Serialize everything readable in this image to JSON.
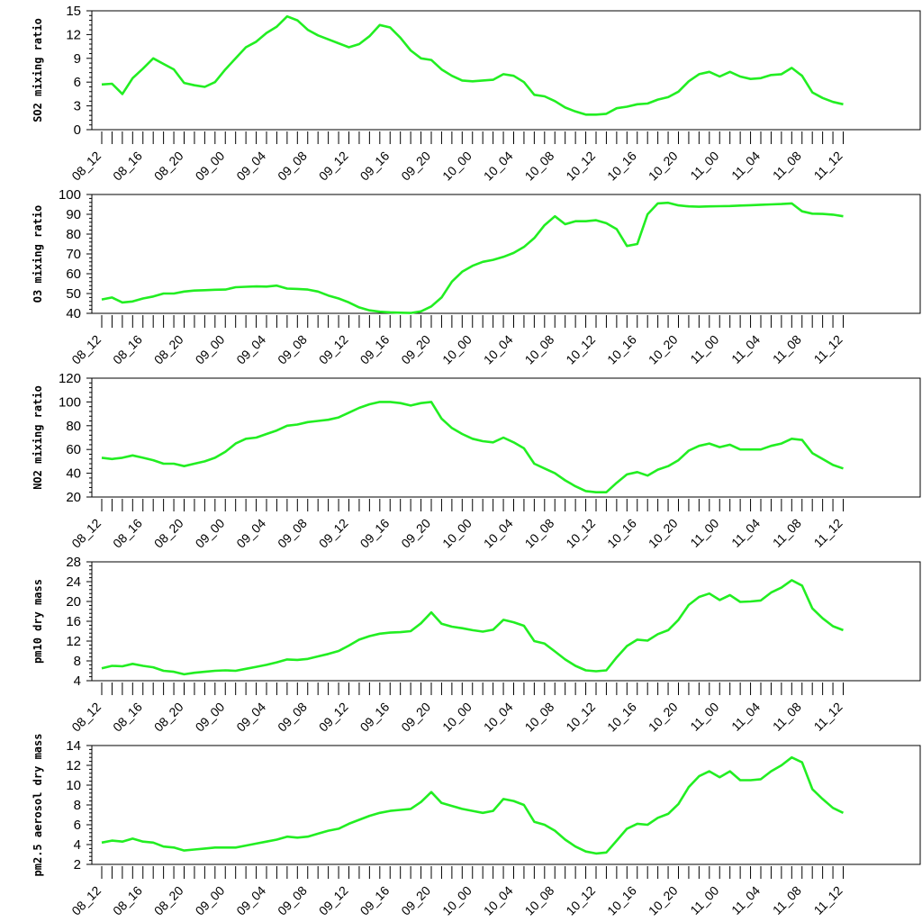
{
  "chart_data": [
    {
      "type": "line",
      "ylabel": "SO2 mixing ratio",
      "ylim": [
        0,
        15
      ],
      "yticks": [
        0,
        3,
        6,
        9,
        12,
        15
      ],
      "x_tick_labels": [
        "08_12",
        "08_16",
        "08_20",
        "09_00",
        "09_04",
        "09_08",
        "09_12",
        "09_16",
        "09_20",
        "10_00",
        "10_04",
        "10_08",
        "10_12",
        "10_16",
        "10_20",
        "11_00",
        "11_04",
        "11_08",
        "11_12"
      ],
      "line_color": "#22ee22",
      "values": [
        5.7,
        5.8,
        4.5,
        6.5,
        7.7,
        9.0,
        8.3,
        7.6,
        5.9,
        5.6,
        5.4,
        6.0,
        7.6,
        9.0,
        10.4,
        11.1,
        12.2,
        13.0,
        14.3,
        13.8,
        12.6,
        11.9,
        11.4,
        10.9,
        10.4,
        10.8,
        11.8,
        13.2,
        12.9,
        11.6,
        10.0,
        9.0,
        8.8,
        7.6,
        6.8,
        6.2,
        6.1,
        6.2,
        6.3,
        7.0,
        6.8,
        6.0,
        4.4,
        4.2,
        3.6,
        2.8,
        2.3,
        1.9,
        1.9,
        2.0,
        2.7,
        2.9,
        3.2,
        3.3,
        3.8,
        4.1,
        4.8,
        6.1,
        7.0,
        7.3,
        6.7,
        7.3,
        6.7,
        6.4,
        6.5,
        6.9,
        7.0,
        7.8,
        6.8,
        4.7,
        4.0,
        3.5,
        3.2
      ]
    },
    {
      "type": "line",
      "ylabel": "O3 mixing ratio",
      "ylim": [
        40,
        100
      ],
      "yticks": [
        40,
        50,
        60,
        70,
        80,
        90,
        100
      ],
      "x_tick_labels": [
        "08_12",
        "08_16",
        "08_20",
        "09_00",
        "09_04",
        "09_08",
        "09_12",
        "09_16",
        "09_20",
        "10_00",
        "10_04",
        "10_08",
        "10_12",
        "10_16",
        "10_20",
        "11_00",
        "11_04",
        "11_08",
        "11_12"
      ],
      "line_color": "#22ee22",
      "values": [
        47,
        48,
        45.5,
        46,
        47.5,
        48.5,
        50,
        50,
        51,
        51.5,
        51.7,
        51.9,
        52,
        53.2,
        53.4,
        53.6,
        53.5,
        54,
        52.5,
        52.3,
        52,
        51,
        49,
        47.5,
        45.5,
        43,
        41.5,
        40.8,
        40.5,
        40.3,
        40.2,
        41,
        43.5,
        48,
        56,
        61,
        64,
        66,
        67,
        68.5,
        70.5,
        73.5,
        78,
        84.5,
        89,
        85,
        86.5,
        86.5,
        87,
        85.5,
        82.5,
        74,
        75,
        90,
        95.5,
        95.8,
        94.5,
        94,
        93.8,
        94,
        94.1,
        94.2,
        94.4,
        94.6,
        94.8,
        95,
        95.2,
        95.5,
        91.5,
        90.3,
        90.2,
        89.8,
        89
      ]
    },
    {
      "type": "line",
      "ylabel": "NO2 mixing ratio",
      "ylim": [
        20,
        120
      ],
      "yticks": [
        20,
        40,
        60,
        80,
        100,
        120
      ],
      "x_tick_labels": [
        "08_12",
        "08_16",
        "08_20",
        "09_00",
        "09_04",
        "09_08",
        "09_12",
        "09_16",
        "09_20",
        "10_00",
        "10_04",
        "10_08",
        "10_12",
        "10_16",
        "10_20",
        "11_00",
        "11_04",
        "11_08",
        "11_12"
      ],
      "line_color": "#22ee22",
      "values": [
        53,
        52,
        53,
        55,
        53,
        51,
        48,
        48,
        46,
        48,
        50,
        53,
        58,
        65,
        69,
        70,
        73,
        76,
        80,
        81,
        83,
        84,
        85,
        87,
        91,
        95,
        98,
        100,
        100,
        99,
        97,
        99,
        100,
        86,
        78,
        73,
        69,
        67,
        66,
        70,
        66,
        61,
        48,
        44,
        40,
        34,
        29,
        25,
        24,
        24,
        32,
        39,
        41,
        38,
        43,
        46,
        51,
        59,
        63,
        65,
        62,
        64,
        60,
        60,
        60,
        63,
        65,
        69,
        68,
        57,
        52,
        47,
        44
      ]
    },
    {
      "type": "line",
      "ylabel": "pm10 dry mass",
      "ylim": [
        4,
        28
      ],
      "yticks": [
        4,
        8,
        12,
        16,
        20,
        24,
        28
      ],
      "x_tick_labels": [
        "08_12",
        "08_16",
        "08_20",
        "09_00",
        "09_04",
        "09_08",
        "09_12",
        "09_16",
        "09_20",
        "10_00",
        "10_04",
        "10_08",
        "10_12",
        "10_16",
        "10_20",
        "11_00",
        "11_04",
        "11_08",
        "11_12"
      ],
      "line_color": "#22ee22",
      "values": [
        6.5,
        7.0,
        6.9,
        7.4,
        7.0,
        6.7,
        6.0,
        5.8,
        5.3,
        5.6,
        5.8,
        6.0,
        6.1,
        6.0,
        6.4,
        6.8,
        7.2,
        7.7,
        8.3,
        8.2,
        8.4,
        8.9,
        9.4,
        10.0,
        11.1,
        12.3,
        13.0,
        13.5,
        13.7,
        13.8,
        14.0,
        15.6,
        17.8,
        15.5,
        14.9,
        14.6,
        14.2,
        13.9,
        14.3,
        16.3,
        15.8,
        15.1,
        12.0,
        11.5,
        9.9,
        8.3,
        7.0,
        6.1,
        5.9,
        6.1,
        8.7,
        11.0,
        12.3,
        12.1,
        13.4,
        14.2,
        16.3,
        19.3,
        20.9,
        21.6,
        20.3,
        21.3,
        19.9,
        20.0,
        20.2,
        21.8,
        22.8,
        24.3,
        23.2,
        18.6,
        16.6,
        15.0,
        14.2
      ]
    },
    {
      "type": "line",
      "ylabel": "pm2.5 aerosol dry mass",
      "ylim": [
        2,
        14
      ],
      "yticks": [
        2,
        4,
        6,
        8,
        10,
        12,
        14
      ],
      "x_tick_labels": [
        "08_12",
        "08_16",
        "08_20",
        "09_00",
        "09_04",
        "09_08",
        "09_12",
        "09_16",
        "09_20",
        "10_00",
        "10_04",
        "10_08",
        "10_12",
        "10_16",
        "10_20",
        "11_00",
        "11_04",
        "11_08",
        "11_12"
      ],
      "line_color": "#22ee22",
      "values": [
        4.2,
        4.4,
        4.3,
        4.6,
        4.3,
        4.2,
        3.8,
        3.7,
        3.4,
        3.5,
        3.6,
        3.7,
        3.7,
        3.7,
        3.9,
        4.1,
        4.3,
        4.5,
        4.8,
        4.7,
        4.8,
        5.1,
        5.4,
        5.6,
        6.1,
        6.5,
        6.9,
        7.2,
        7.4,
        7.5,
        7.6,
        8.3,
        9.3,
        8.2,
        7.9,
        7.6,
        7.4,
        7.2,
        7.4,
        8.6,
        8.4,
        8.0,
        6.3,
        6.0,
        5.4,
        4.5,
        3.8,
        3.3,
        3.1,
        3.2,
        4.4,
        5.6,
        6.1,
        6.0,
        6.7,
        7.1,
        8.1,
        9.8,
        10.9,
        11.4,
        10.8,
        11.4,
        10.5,
        10.5,
        10.6,
        11.4,
        12.0,
        12.8,
        12.3,
        9.6,
        8.6,
        7.7,
        7.2
      ]
    }
  ]
}
